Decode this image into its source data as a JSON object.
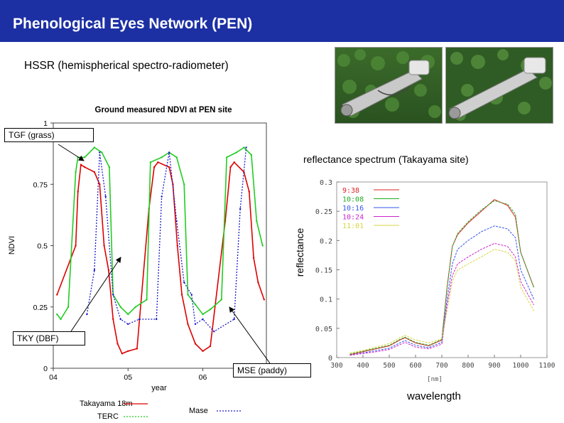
{
  "header": {
    "title": "Phenological Eyes Network (PEN)"
  },
  "subtitle": "HSSR (hemispherical spectro-radiometer)",
  "annotations": {
    "tgf": "TGF (grass)",
    "tky": "TKY (DBF)",
    "mse": "MSE (paddy)",
    "spectrum_title": "reflectance spectrum (Takayama site)",
    "reflectance_axis": "reflectance",
    "wavelength_axis": "wavelength"
  },
  "colors": {
    "header_bg": "#1c2fa3"
  },
  "chart_data": [
    {
      "type": "line",
      "title": "Ground measured NDVI at PEN site",
      "xlabel": "year",
      "ylabel": "NDVI",
      "x_ticks": [
        "04",
        "05",
        "06"
      ],
      "y_ticks": [
        "0",
        "0.25",
        "0.5",
        "0.75",
        "1"
      ],
      "ylim": [
        0,
        1
      ],
      "xlim": [
        2004.0,
        2006.85
      ],
      "grid": false,
      "legend_position": "bottom",
      "series": [
        {
          "name": "Takayama 18m",
          "color": "#dd0000",
          "x": [
            2004.05,
            2004.3,
            2004.33,
            2004.37,
            2004.42,
            2004.55,
            2004.62,
            2004.68,
            2004.74,
            2004.8,
            2004.86,
            2004.92,
            2005.0,
            2005.12,
            2005.28,
            2005.35,
            2005.4,
            2005.55,
            2005.6,
            2005.66,
            2005.72,
            2005.8,
            2005.9,
            2006.0,
            2006.1,
            2006.3,
            2006.37,
            2006.42,
            2006.55,
            2006.62,
            2006.68,
            2006.74,
            2006.82
          ],
          "y": [
            0.3,
            0.5,
            0.72,
            0.83,
            0.82,
            0.8,
            0.75,
            0.5,
            0.4,
            0.2,
            0.1,
            0.06,
            0.07,
            0.08,
            0.65,
            0.82,
            0.84,
            0.82,
            0.75,
            0.5,
            0.3,
            0.18,
            0.1,
            0.07,
            0.09,
            0.6,
            0.82,
            0.84,
            0.8,
            0.72,
            0.45,
            0.35,
            0.28
          ]
        },
        {
          "name": "TERC",
          "color": "#22cc22",
          "x": [
            2004.05,
            2004.1,
            2004.2,
            2004.3,
            2004.33,
            2004.42,
            2004.55,
            2004.65,
            2004.75,
            2004.8,
            2004.9,
            2005.0,
            2005.1,
            2005.25,
            2005.3,
            2005.45,
            2005.55,
            2005.65,
            2005.75,
            2005.8,
            2005.9,
            2006.0,
            2006.1,
            2006.25,
            2006.32,
            2006.45,
            2006.55,
            2006.65,
            2006.72,
            2006.8
          ],
          "y": [
            0.22,
            0.2,
            0.25,
            0.8,
            0.86,
            0.86,
            0.9,
            0.88,
            0.82,
            0.3,
            0.25,
            0.22,
            0.25,
            0.28,
            0.84,
            0.86,
            0.88,
            0.86,
            0.75,
            0.3,
            0.26,
            0.22,
            0.24,
            0.28,
            0.86,
            0.88,
            0.9,
            0.87,
            0.6,
            0.5
          ]
        },
        {
          "name": "Mase",
          "color": "#1a1acc",
          "x": [
            2004.45,
            2004.55,
            2004.62,
            2004.7,
            2004.8,
            2004.9,
            2005.0,
            2005.15,
            2005.38,
            2005.45,
            2005.55,
            2005.65,
            2005.75,
            2005.85,
            2005.9,
            2006.0,
            2006.15,
            2006.42,
            2006.5,
            2006.58
          ],
          "y": [
            0.22,
            0.4,
            0.88,
            0.7,
            0.3,
            0.2,
            0.18,
            0.2,
            0.2,
            0.7,
            0.88,
            0.6,
            0.35,
            0.3,
            0.18,
            0.2,
            0.15,
            0.2,
            0.65,
            0.9
          ]
        }
      ]
    },
    {
      "type": "line",
      "xlabel": "wavelength",
      "ylabel": "reflectance",
      "x_unit": "[nm]",
      "x_ticks": [
        "300",
        "400",
        "500",
        "600",
        "700",
        "800",
        "900",
        "1000",
        "1100"
      ],
      "y_ticks": [
        "0",
        "0.05",
        "0.1",
        "0.15",
        "0.2",
        "0.25",
        "0.3"
      ],
      "xlim": [
        300,
        1100
      ],
      "ylim": [
        0,
        0.3
      ],
      "grid": false,
      "legend_position": "top-left",
      "series": [
        {
          "name": "9:38",
          "color": "#dd2222",
          "x": [
            350,
            400,
            450,
            500,
            540,
            560,
            600,
            650,
            700,
            720,
            740,
            760,
            800,
            850,
            900,
            950,
            980,
            1000,
            1050
          ],
          "y": [
            0.005,
            0.01,
            0.015,
            0.02,
            0.03,
            0.034,
            0.025,
            0.02,
            0.03,
            0.12,
            0.19,
            0.21,
            0.23,
            0.25,
            0.27,
            0.26,
            0.24,
            0.18,
            0.12
          ]
        },
        {
          "name": "10:08",
          "color": "#22aa22",
          "x": [
            350,
            400,
            450,
            500,
            540,
            560,
            600,
            650,
            700,
            720,
            740,
            760,
            800,
            850,
            900,
            950,
            980,
            1000,
            1050
          ],
          "y": [
            0.006,
            0.011,
            0.016,
            0.021,
            0.031,
            0.035,
            0.026,
            0.021,
            0.031,
            0.12,
            0.19,
            0.212,
            0.232,
            0.252,
            0.268,
            0.262,
            0.245,
            0.18,
            0.12
          ]
        },
        {
          "name": "10:16",
          "color": "#3355ee",
          "x": [
            350,
            400,
            450,
            500,
            540,
            560,
            600,
            650,
            700,
            720,
            740,
            760,
            800,
            850,
            900,
            950,
            980,
            1000,
            1050
          ],
          "y": [
            0.004,
            0.008,
            0.012,
            0.016,
            0.025,
            0.029,
            0.021,
            0.017,
            0.026,
            0.1,
            0.16,
            0.185,
            0.2,
            0.215,
            0.225,
            0.22,
            0.205,
            0.15,
            0.1
          ]
        },
        {
          "name": "10:24",
          "color": "#cc22cc",
          "x": [
            350,
            400,
            450,
            500,
            540,
            560,
            600,
            650,
            700,
            720,
            740,
            760,
            800,
            850,
            900,
            950,
            980,
            1000,
            1050
          ],
          "y": [
            0.004,
            0.007,
            0.01,
            0.014,
            0.022,
            0.026,
            0.018,
            0.015,
            0.023,
            0.09,
            0.14,
            0.16,
            0.172,
            0.185,
            0.195,
            0.19,
            0.172,
            0.13,
            0.09
          ]
        },
        {
          "name": "11:01",
          "color": "#d6d640",
          "x": [
            350,
            400,
            450,
            500,
            540,
            560,
            600,
            650,
            700,
            720,
            740,
            760,
            800,
            850,
            900,
            950,
            980,
            1000,
            1050
          ],
          "y": [
            0.008,
            0.012,
            0.018,
            0.024,
            0.034,
            0.038,
            0.03,
            0.025,
            0.032,
            0.08,
            0.13,
            0.15,
            0.16,
            0.172,
            0.185,
            0.18,
            0.165,
            0.12,
            0.08
          ]
        }
      ]
    }
  ]
}
